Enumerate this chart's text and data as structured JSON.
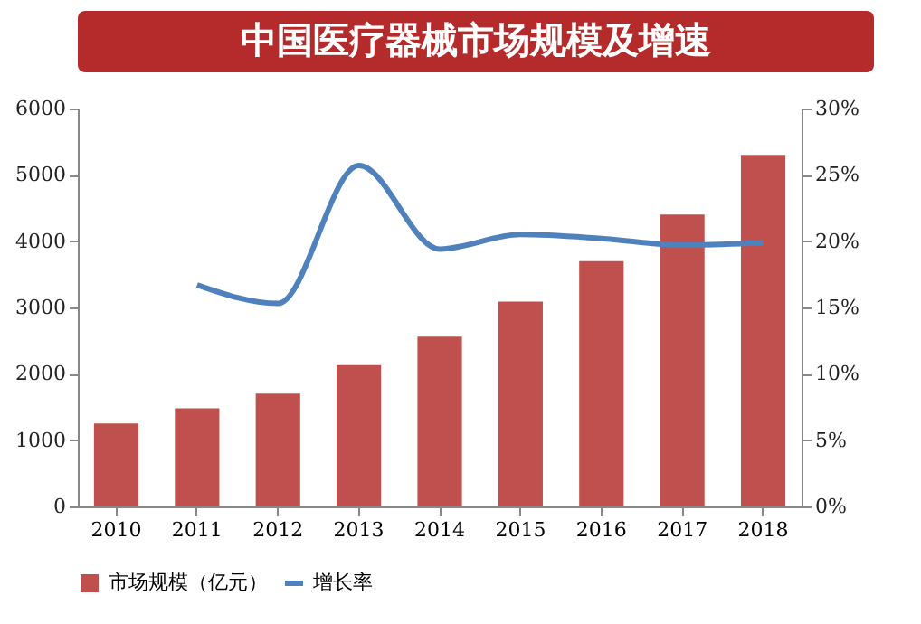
{
  "chart_data": {
    "type": "bar",
    "title": "中国医疗器械市场规模及增速",
    "categories": [
      "2010",
      "2011",
      "2012",
      "2013",
      "2014",
      "2015",
      "2016",
      "2017",
      "2018"
    ],
    "series": [
      {
        "name": "市场规模（亿元）",
        "color": "#c0504d",
        "values": [
          1250,
          1480,
          1700,
          2130,
          2560,
          3090,
          3700,
          4400,
          5300
        ]
      },
      {
        "name": "增长率",
        "type": "line",
        "axis": "y2",
        "color": "#4f81bd",
        "values": [
          null,
          16.7,
          15.3,
          25.7,
          19.4,
          20.5,
          20.2,
          19.7,
          19.9
        ]
      }
    ],
    "ylim": [
      0,
      6000
    ],
    "yticks": [
      0,
      1000,
      2000,
      3000,
      4000,
      5000,
      6000
    ],
    "y2lim": [
      0,
      30
    ],
    "y2ticks": [
      {
        "value": 0,
        "label": "0%"
      },
      {
        "value": 5,
        "label": "5%"
      },
      {
        "value": 10,
        "label": "10%"
      },
      {
        "value": 15,
        "label": "15%"
      },
      {
        "value": 20,
        "label": "20%"
      },
      {
        "value": 25,
        "label": "25%"
      },
      {
        "value": 30,
        "label": "30%"
      }
    ],
    "legend": "bottom",
    "grid": false,
    "marker": "none",
    "line_style": "solid"
  }
}
